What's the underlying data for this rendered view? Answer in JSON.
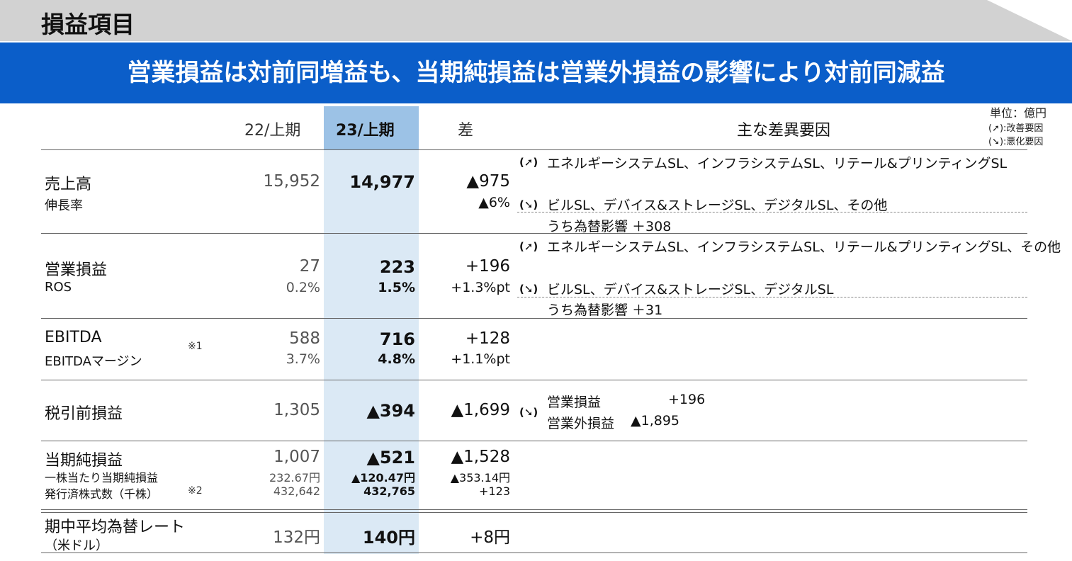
{
  "page_title": "損益項目",
  "headline": "営業損益は対前同増益も、当期純損益は営業外損益の影響により対前同減益",
  "unit_note": {
    "unit": "単位：億円",
    "improve": "(➚):改善要因",
    "worsen": "(➘):悪化要因"
  },
  "columns": {
    "prev": "22/上期",
    "curr": "23/上期",
    "diff": "差",
    "reasons": "主な差異要因"
  },
  "arrows": {
    "up": "(➚)",
    "down": "(➘)"
  },
  "rows": {
    "sales": {
      "label": "売上高",
      "sublabel": "伸長率",
      "prev": "15,952",
      "curr": "14,977",
      "diff": "▲975",
      "diff_sub": "▲6%",
      "reason_up": "エネルギーシステムSL、インフラシステムSL、リテール&プリンティングSL",
      "reason_down": "ビルSL、デバイス&ストレージSL、デジタルSL、その他",
      "reason_fx": "うち為替影響 ＋308"
    },
    "operating": {
      "label": "営業損益",
      "sublabel": "ROS",
      "prev": "27",
      "prev_sub": "0.2%",
      "curr": "223",
      "curr_sub": "1.5%",
      "diff": "+196",
      "diff_sub": "+1.3%pt",
      "reason_up": "エネルギーシステムSL、インフラシステムSL、リテール&プリンティングSL、その他",
      "reason_down": "ビルSL、デバイス&ストレージSL、デジタルSL",
      "reason_fx": "うち為替影響 ＋31"
    },
    "ebitda": {
      "label": "EBITDA",
      "sublabel": "EBITDAマージン",
      "note": "※1",
      "prev": "588",
      "prev_sub": "3.7%",
      "curr": "716",
      "curr_sub": "4.8%",
      "diff": "+128",
      "diff_sub": "+1.1%pt"
    },
    "pretax": {
      "label": "税引前損益",
      "prev": "1,305",
      "curr": "▲394",
      "diff": "▲1,699",
      "reason_1_label": "営業損益",
      "reason_1_value": "+196",
      "reason_2_label": "営業外損益",
      "reason_2_value": "▲1,895"
    },
    "net": {
      "label": "当期純損益",
      "sublabel_1": "一株当たり当期純損益",
      "sublabel_2": "発行済株式数（千株）",
      "note": "※2",
      "prev": "1,007",
      "prev_sub_1": "232.67円",
      "prev_sub_2": "432,642",
      "curr": "▲521",
      "curr_sub_1": "▲120.47円",
      "curr_sub_2": "432,765",
      "diff": "▲1,528",
      "diff_sub_1": "▲353.14円",
      "diff_sub_2": "+123"
    },
    "fx": {
      "label": "期中平均為替レート",
      "sublabel": "（米ドル）",
      "prev": "132円",
      "curr": "140円",
      "diff": "+8円"
    }
  }
}
